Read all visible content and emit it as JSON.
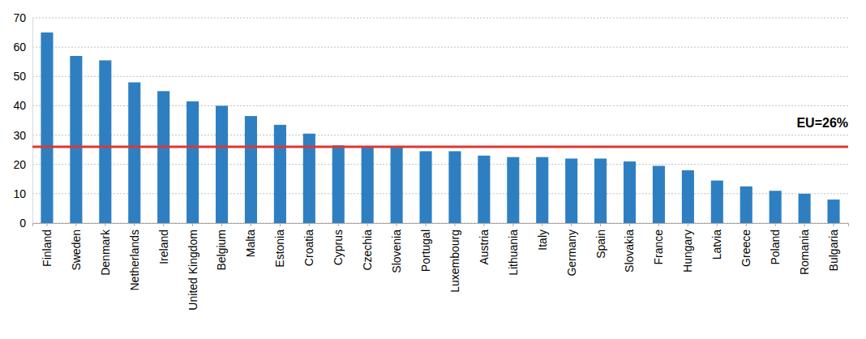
{
  "chart_data": {
    "type": "bar",
    "categories": [
      "Finland",
      "Sweden",
      "Denmark",
      "Netherlands",
      "Ireland",
      "United Kingdom",
      "Belgium",
      "Malta",
      "Estonia",
      "Croatia",
      "Cyprus",
      "Czechia",
      "Slovenia",
      "Portugal",
      "Luxembourg",
      "Austria",
      "Lithuania",
      "Italy",
      "Germany",
      "Spain",
      "Slovakia",
      "France",
      "Hungary",
      "Latvia",
      "Greece",
      "Poland",
      "Romania",
      "Bulgaria"
    ],
    "values": [
      65,
      57,
      55.5,
      48,
      45,
      41.5,
      40,
      36.5,
      33.5,
      30.5,
      26.5,
      26,
      26,
      24.5,
      24.5,
      23,
      22.5,
      22.5,
      22,
      22,
      21,
      19.5,
      18,
      14.5,
      12.5,
      11,
      10,
      8
    ],
    "color": "#2e7fc2",
    "ylim": [
      0,
      70
    ],
    "yticks": [
      0,
      10,
      20,
      30,
      40,
      50,
      60,
      70
    ],
    "grid": true,
    "data_labels": false,
    "annotations": [
      {
        "label": "EU=26%",
        "value": 26
      }
    ]
  }
}
